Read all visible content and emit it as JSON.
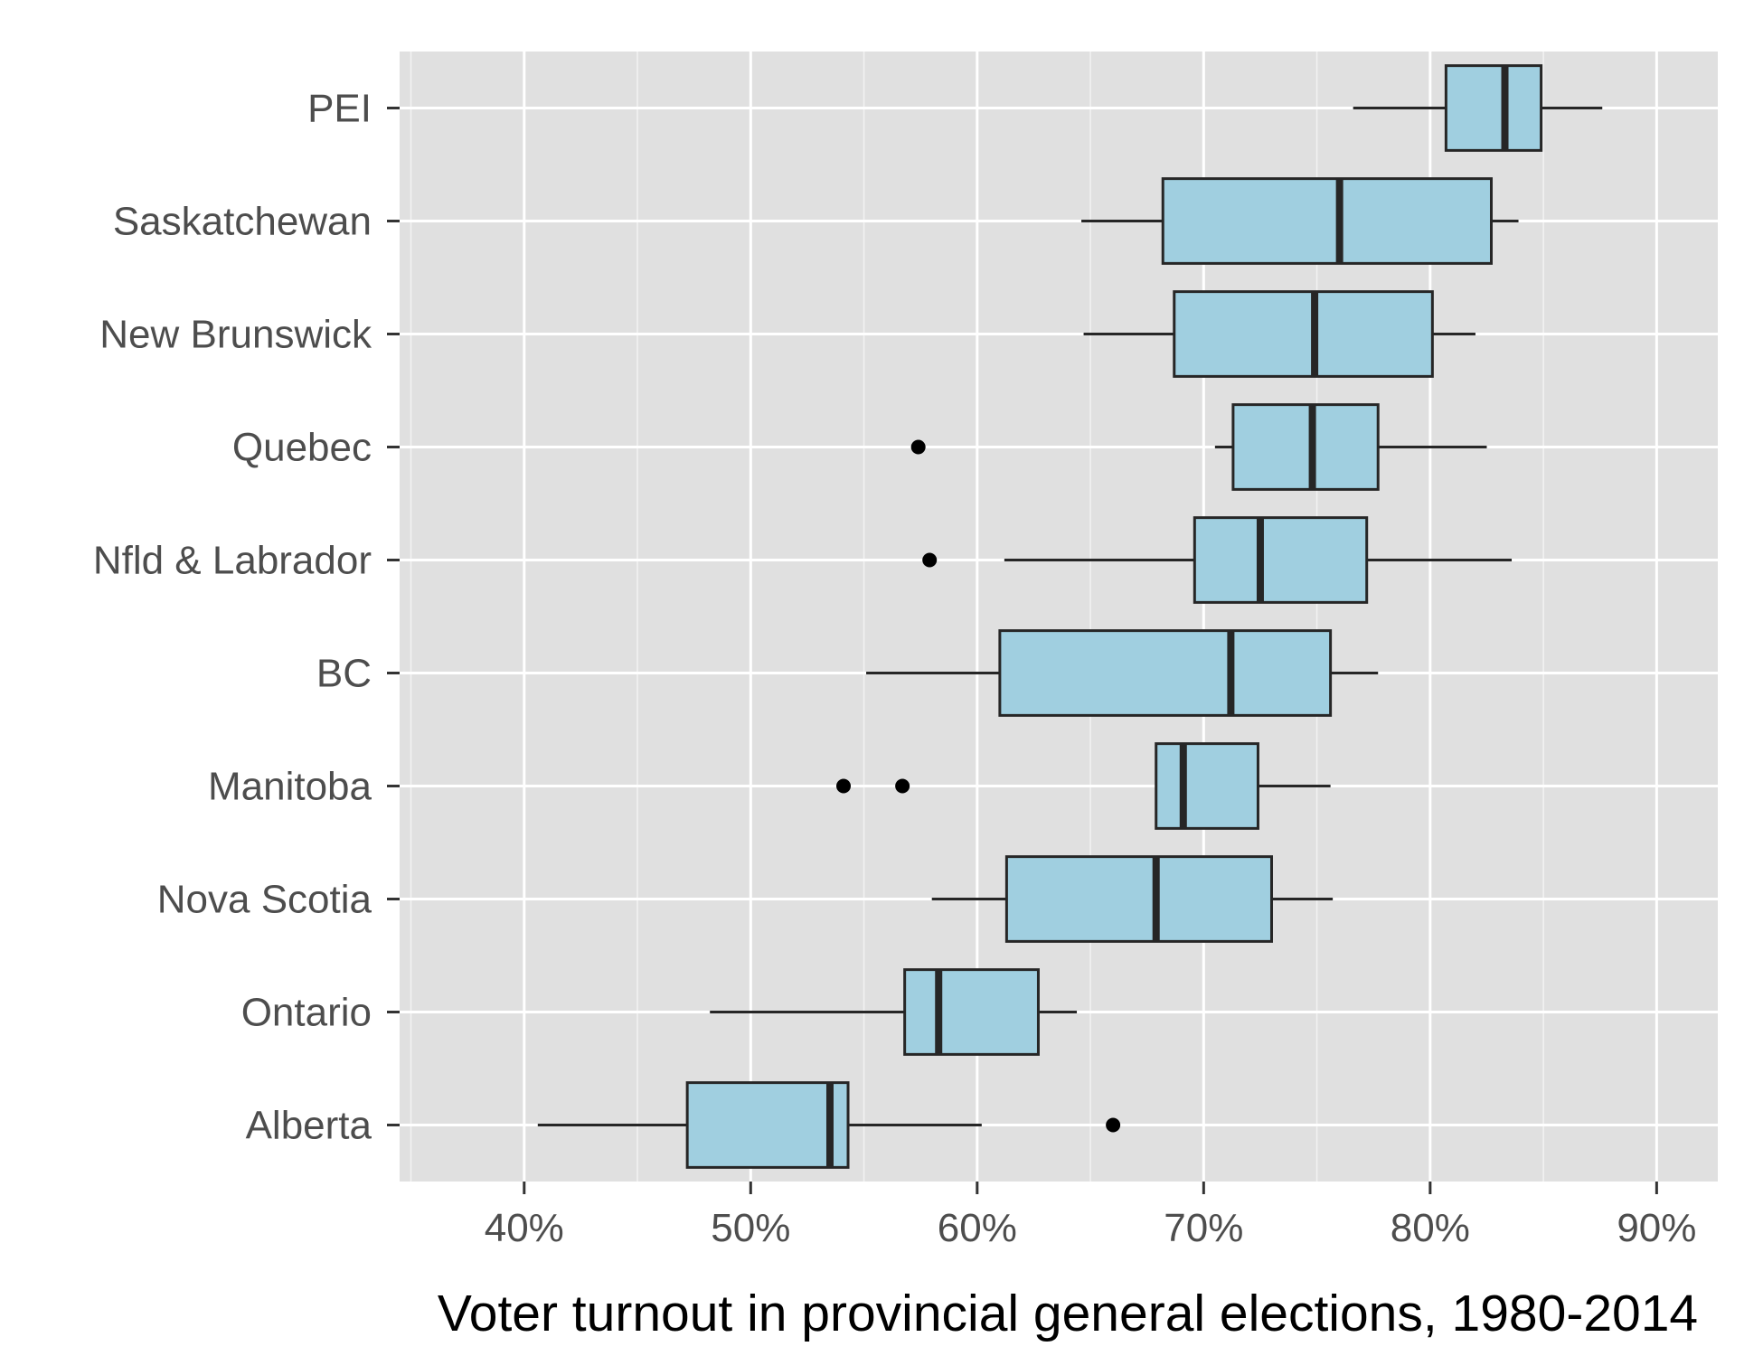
{
  "colors": {
    "panel_bg": "#e0e0e0",
    "grid": "#ffffff",
    "box_fill": "#a0cfe0",
    "box_stroke": "#262626",
    "outlier": "#000000",
    "tick_text": "#4d4d4d",
    "title_text": "#000000"
  },
  "chart_data": {
    "type": "boxplot",
    "orientation": "horizontal",
    "title": "",
    "xlabel": "Voter turnout in provincial general elections, 1980-2014",
    "ylabel": "",
    "xlim": [
      0.345,
      0.927
    ],
    "x_ticks": [
      {
        "value": 0.4,
        "label": "40%"
      },
      {
        "value": 0.5,
        "label": "50%"
      },
      {
        "value": 0.6,
        "label": "60%"
      },
      {
        "value": 0.7,
        "label": "70%"
      },
      {
        "value": 0.8,
        "label": "80%"
      },
      {
        "value": 0.9,
        "label": "90%"
      }
    ],
    "grid": true,
    "legend": "none",
    "categories": [
      "PEI",
      "Saskatchewan",
      "New Brunswick",
      "Quebec",
      "Nfld & Labrador",
      "BC",
      "Manitoba",
      "Nova Scotia",
      "Ontario",
      "Alberta"
    ],
    "boxes": [
      {
        "label": "PEI",
        "min": 0.766,
        "q1": 0.807,
        "median": 0.833,
        "q3": 0.849,
        "max": 0.876,
        "outliers": []
      },
      {
        "label": "Saskatchewan",
        "min": 0.646,
        "q1": 0.682,
        "median": 0.76,
        "q3": 0.827,
        "max": 0.839,
        "outliers": []
      },
      {
        "label": "New Brunswick",
        "min": 0.647,
        "q1": 0.687,
        "median": 0.749,
        "q3": 0.801,
        "max": 0.82,
        "outliers": []
      },
      {
        "label": "Quebec",
        "min": 0.705,
        "q1": 0.713,
        "median": 0.748,
        "q3": 0.777,
        "max": 0.825,
        "outliers": [
          0.574
        ]
      },
      {
        "label": "Nfld & Labrador",
        "min": 0.612,
        "q1": 0.696,
        "median": 0.725,
        "q3": 0.772,
        "max": 0.836,
        "outliers": [
          0.579
        ]
      },
      {
        "label": "BC",
        "min": 0.551,
        "q1": 0.61,
        "median": 0.712,
        "q3": 0.756,
        "max": 0.777,
        "outliers": []
      },
      {
        "label": "Manitoba",
        "min": 0.679,
        "q1": 0.679,
        "median": 0.691,
        "q3": 0.724,
        "max": 0.756,
        "outliers": [
          0.541,
          0.567
        ]
      },
      {
        "label": "Nova Scotia",
        "min": 0.58,
        "q1": 0.613,
        "median": 0.679,
        "q3": 0.73,
        "max": 0.757,
        "outliers": []
      },
      {
        "label": "Ontario",
        "min": 0.482,
        "q1": 0.568,
        "median": 0.583,
        "q3": 0.627,
        "max": 0.644,
        "outliers": []
      },
      {
        "label": "Alberta",
        "min": 0.406,
        "q1": 0.472,
        "median": 0.535,
        "q3": 0.543,
        "max": 0.602,
        "outliers": [
          0.66
        ]
      }
    ]
  }
}
